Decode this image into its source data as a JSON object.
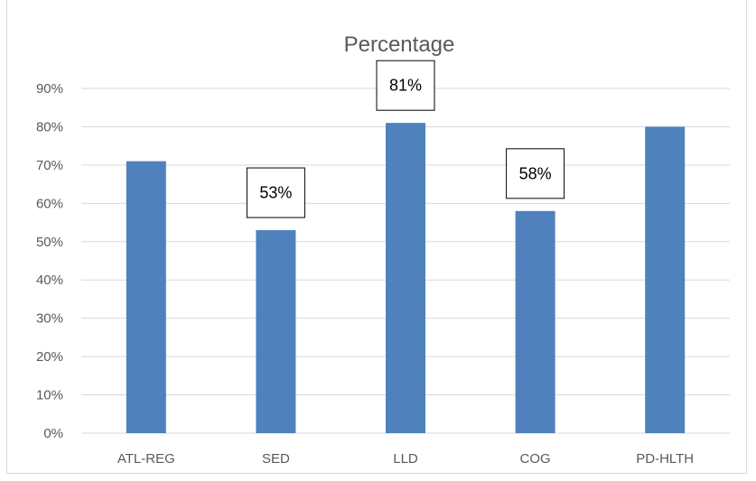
{
  "chart_data": {
    "type": "bar",
    "title": "Percentage",
    "xlabel": "",
    "ylabel": "",
    "categories": [
      "ATL-REG",
      "SED",
      "LLD",
      "COG",
      "PD-HLTH"
    ],
    "values": [
      71,
      53,
      81,
      58,
      80
    ],
    "value_unit": "%",
    "ylim": [
      0,
      90
    ],
    "y_ticks": [
      "0%",
      "10%",
      "20%",
      "30%",
      "40%",
      "50%",
      "60%",
      "70%",
      "80%",
      "90%"
    ],
    "data_labels": [
      {
        "category": "SED",
        "text": "53%"
      },
      {
        "category": "LLD",
        "text": "81%"
      },
      {
        "category": "COG",
        "text": "58%"
      }
    ],
    "grid": true,
    "legend": "none",
    "colors": {
      "bar": "#4f81bd",
      "grid": "#d9d9d9",
      "axis_text": "#595959",
      "title_text": "#595959"
    }
  }
}
